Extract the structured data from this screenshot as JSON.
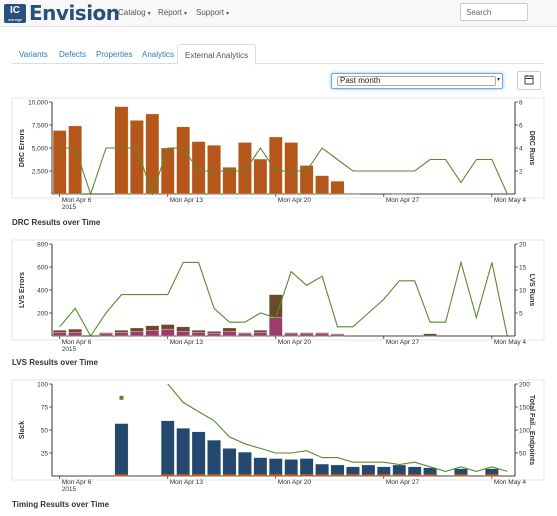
{
  "header": {
    "logo_badge": "IC",
    "logo_badge_sub": "manage",
    "logo_text": "Envision",
    "menus": [
      {
        "label": "Catalog",
        "name": "menu-catalog"
      },
      {
        "label": "Report",
        "name": "menu-report"
      },
      {
        "label": "Support",
        "name": "menu-support"
      }
    ],
    "search_placeholder": "Search"
  },
  "tabs": [
    {
      "label": "Variants",
      "active": false
    },
    {
      "label": "Defects",
      "active": false
    },
    {
      "label": "Properties",
      "active": false
    },
    {
      "label": "Analytics",
      "active": false
    },
    {
      "label": "External Analytics",
      "active": true
    }
  ],
  "range_select": {
    "value": "Past month"
  },
  "colors": {
    "accent": "#2b7bb9",
    "drc_bar": "#b5561a",
    "line": "#5a8a2b",
    "lvs_bottom": "#9a3d6a",
    "lvs_top": "#6b4a2a",
    "slack_bar": "#234a6e",
    "slack_base": "#b5561a"
  },
  "chart_data": [
    {
      "id": "drc",
      "type": "bar",
      "title": "DRC Results over Time",
      "ylabel": "DRC Errors",
      "y2label": "DRC Runs",
      "ylim": [
        0,
        10000
      ],
      "y2lim": [
        0,
        8
      ],
      "yticks": [
        "2,500",
        "5,000",
        "7,500",
        "10,000"
      ],
      "y2ticks": [
        "2",
        "4",
        "6",
        "8"
      ],
      "xticks": [
        "Mon Apr 6\n2015",
        "Mon Apr 13",
        "Mon Apr 20",
        "Mon Apr 27",
        "Mon May 4"
      ],
      "categories": [
        "Apr 6",
        "Apr 7",
        "Apr 8",
        "Apr 9",
        "Apr 10",
        "Apr 11",
        "Apr 12",
        "Apr 13",
        "Apr 14",
        "Apr 15",
        "Apr 16",
        "Apr 17",
        "Apr 18",
        "Apr 19",
        "Apr 20",
        "Apr 21",
        "Apr 22",
        "Apr 23",
        "Apr 24",
        "Apr 25",
        "Apr 26",
        "Apr 27",
        "Apr 28",
        "Apr 29",
        "Apr 30",
        "May 1",
        "May 2",
        "May 3",
        "May 4",
        "May 5"
      ],
      "series": [
        {
          "kind": "bar",
          "values": [
            6900,
            7400,
            0,
            0,
            9500,
            8000,
            8700,
            5000,
            7300,
            5700,
            5300,
            2900,
            5600,
            3800,
            6200,
            5600,
            3100,
            2000,
            1400,
            100,
            0,
            0,
            100,
            0,
            0,
            0,
            0,
            0,
            0,
            0
          ]
        },
        {
          "kind": "line",
          "values": [
            4,
            4,
            0,
            4,
            4,
            4,
            0,
            4,
            4,
            2,
            2,
            2,
            2,
            4,
            2,
            2,
            2,
            4,
            3,
            2,
            2,
            2,
            2,
            2,
            3,
            3,
            1,
            3,
            3,
            0
          ]
        }
      ]
    },
    {
      "id": "lvs",
      "type": "bar",
      "title": "LVS Results over Time",
      "ylabel": "LVS Errors",
      "y2label": "LVS Runs",
      "ylim": [
        0,
        800
      ],
      "y2lim": [
        0,
        20
      ],
      "yticks": [
        "200",
        "400",
        "600",
        "800"
      ],
      "y2ticks": [
        "5",
        "10",
        "15",
        "20"
      ],
      "xticks": [
        "Mon Apr 6\n2015",
        "Mon Apr 13",
        "Mon Apr 20",
        "Mon Apr 27",
        "Mon May 4"
      ],
      "categories": [
        "Apr 6",
        "Apr 7",
        "Apr 8",
        "Apr 9",
        "Apr 10",
        "Apr 11",
        "Apr 12",
        "Apr 13",
        "Apr 14",
        "Apr 15",
        "Apr 16",
        "Apr 17",
        "Apr 18",
        "Apr 19",
        "Apr 20",
        "Apr 21",
        "Apr 22",
        "Apr 23",
        "Apr 24",
        "Apr 25",
        "Apr 26",
        "Apr 27",
        "Apr 28",
        "Apr 29",
        "Apr 30",
        "May 1",
        "May 2",
        "May 3",
        "May 4",
        "May 5"
      ],
      "series": [
        {
          "kind": "bar",
          "name": "",
          "values": [
            30,
            30,
            0,
            20,
            30,
            40,
            50,
            60,
            40,
            30,
            25,
            40,
            20,
            30,
            160,
            20,
            20,
            20,
            10,
            0,
            0,
            0,
            0,
            0,
            0,
            0,
            0,
            0,
            0,
            0
          ]
        },
        {
          "kind": "bar",
          "name": "",
          "values": [
            20,
            30,
            0,
            10,
            20,
            30,
            40,
            40,
            40,
            20,
            15,
            30,
            10,
            20,
            200,
            10,
            10,
            10,
            10,
            0,
            0,
            0,
            0,
            0,
            20,
            0,
            0,
            0,
            0,
            0
          ]
        },
        {
          "kind": "line",
          "values": [
            2,
            6,
            0,
            5,
            9,
            9,
            9,
            9,
            16,
            16,
            6,
            3,
            3,
            5,
            4,
            14,
            11,
            13,
            2,
            2,
            5,
            8,
            12,
            12,
            3,
            3,
            16,
            4,
            16,
            0
          ]
        }
      ]
    },
    {
      "id": "timing",
      "type": "bar",
      "title": "Timing Results over Time",
      "ylabel": "Slack",
      "y2label": "Total Fail.. Endpoints",
      "ylim": [
        0,
        100
      ],
      "y2lim": [
        0,
        200
      ],
      "yticks": [
        "25",
        "50",
        "75",
        "100"
      ],
      "y2ticks": [
        "50",
        "100",
        "150",
        "200"
      ],
      "xticks": [
        "Mon Apr 6\n2015",
        "Mon Apr 13",
        "Mon Apr 20",
        "Mon Apr 27",
        "Mon May 4"
      ],
      "categories": [
        "Apr 6",
        "Apr 7",
        "Apr 8",
        "Apr 9",
        "Apr 10",
        "Apr 11",
        "Apr 12",
        "Apr 13",
        "Apr 14",
        "Apr 15",
        "Apr 16",
        "Apr 17",
        "Apr 18",
        "Apr 19",
        "Apr 20",
        "Apr 21",
        "Apr 22",
        "Apr 23",
        "Apr 24",
        "Apr 25",
        "Apr 26",
        "Apr 27",
        "Apr 28",
        "Apr 29",
        "Apr 30",
        "May 1",
        "May 2",
        "May 3",
        "May 4",
        "May 5"
      ],
      "series": [
        {
          "kind": "bar",
          "name": "",
          "values": [
            0,
            0,
            0,
            0,
            57,
            0,
            0,
            60,
            52,
            48,
            39,
            30,
            26,
            20,
            19,
            18,
            19,
            13,
            12,
            10,
            12,
            10,
            12,
            10,
            9,
            0,
            8,
            0,
            8,
            0
          ]
        },
        {
          "kind": "line",
          "values": [
            null,
            null,
            null,
            null,
            null,
            null,
            null,
            200,
            160,
            140,
            120,
            85,
            70,
            60,
            50,
            50,
            55,
            40,
            40,
            30,
            30,
            30,
            25,
            30,
            20,
            10,
            20,
            10,
            20,
            10
          ]
        },
        {
          "kind": "point",
          "category": "Apr 10",
          "value": 85
        }
      ]
    }
  ]
}
